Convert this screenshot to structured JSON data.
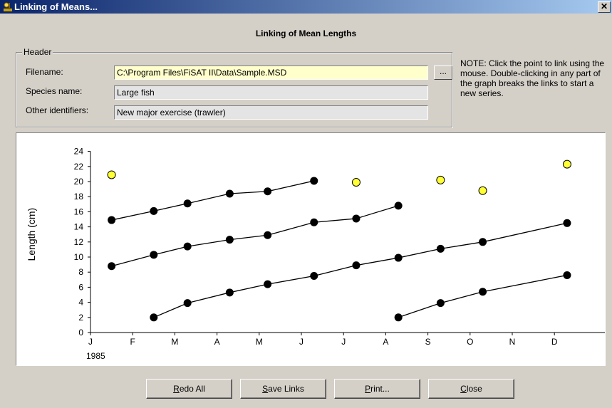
{
  "window": {
    "title": "Linking of Means...",
    "close_glyph": "✕"
  },
  "dialog": {
    "heading": "Linking of Mean Lengths"
  },
  "header": {
    "group_label": "Header",
    "filename_label": "Filename:",
    "filename_value": "C:\\Program Files\\FiSAT II\\Data\\Sample.MSD",
    "species_label": "Species name:",
    "species_value": "Large fish",
    "other_label": "Other identifiers:",
    "other_value": "New major exercise (trawler)",
    "browse_label": "..."
  },
  "note": "NOTE: Click the point to link using the mouse. Double-clicking in any part of the graph breaks the links to start a new series.",
  "buttons": [
    {
      "hot": "R",
      "rest": "edo All"
    },
    {
      "hot": "S",
      "rest": "ave Links"
    },
    {
      "hot": "P",
      "rest": "rint..."
    },
    {
      "hot": "C",
      "rest": "lose"
    }
  ],
  "colors": {
    "linked_point": "#000000",
    "unlinked_point": "#ffff33",
    "title_bar": "#0a246a"
  },
  "chart_data": {
    "type": "scatter",
    "ylabel": "Length (cm)",
    "year_label": "1985",
    "months": [
      "J",
      "F",
      "M",
      "A",
      "M",
      "J",
      "J",
      "A",
      "S",
      "O",
      "N",
      "D"
    ],
    "ylim": [
      0,
      24
    ],
    "yticks": [
      0,
      2,
      4,
      6,
      8,
      10,
      12,
      14,
      16,
      18,
      20,
      22,
      24
    ],
    "xlim": [
      0,
      12
    ],
    "grid": false,
    "linked_series": [
      {
        "points": [
          [
            0.5,
            14.9
          ],
          [
            1.5,
            16.1
          ],
          [
            2.3,
            17.1
          ],
          [
            3.3,
            18.4
          ],
          [
            4.2,
            18.7
          ],
          [
            5.3,
            20.1
          ]
        ]
      },
      {
        "points": [
          [
            0.5,
            8.8
          ],
          [
            1.5,
            10.3
          ],
          [
            2.3,
            11.4
          ],
          [
            3.3,
            12.3
          ],
          [
            4.2,
            12.9
          ],
          [
            5.3,
            14.6
          ],
          [
            6.3,
            15.1
          ],
          [
            7.3,
            16.8
          ]
        ]
      },
      {
        "points": [
          [
            1.5,
            2.0
          ],
          [
            2.3,
            3.9
          ],
          [
            3.3,
            5.3
          ],
          [
            4.2,
            6.4
          ],
          [
            5.3,
            7.5
          ],
          [
            6.3,
            8.9
          ],
          [
            7.3,
            9.9
          ],
          [
            8.3,
            11.1
          ],
          [
            9.3,
            12.0
          ],
          [
            11.3,
            14.5
          ]
        ]
      },
      {
        "points": [
          [
            7.3,
            2.0
          ],
          [
            8.3,
            3.9
          ],
          [
            9.3,
            5.4
          ],
          [
            11.3,
            7.6
          ]
        ]
      }
    ],
    "unlinked_points": [
      [
        0.5,
        20.9
      ],
      [
        6.3,
        19.9
      ],
      [
        8.3,
        20.2
      ],
      [
        9.3,
        18.8
      ],
      [
        11.3,
        22.3
      ]
    ]
  }
}
